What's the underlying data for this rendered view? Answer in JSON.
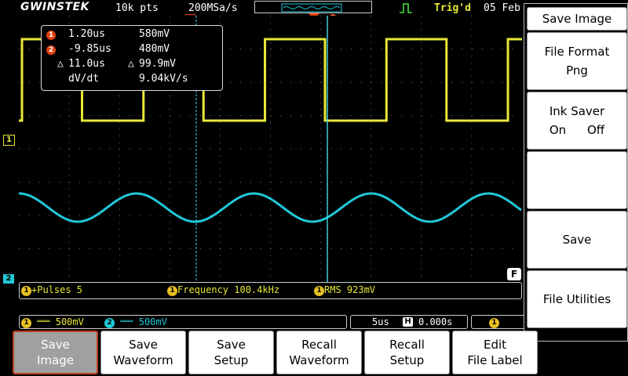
{
  "topbar": {
    "brand": "GWINSTEK",
    "record_length": "10k pts",
    "sample_rate": "200MSa/s",
    "trigger_status": "Trig'd",
    "date": "05 Feb"
  },
  "markers": {
    "ch1": "1",
    "ch2": "2",
    "cursor1": "1",
    "cursor2": "2",
    "flag": "F"
  },
  "cursor_readout": {
    "c1_time": "1.20us",
    "c1_volt": "580mV",
    "c2_time": "-9.85us",
    "c2_volt": "480mV",
    "delta_time": "11.0us",
    "delta_volt": "99.9mV",
    "dvdt_label": "dV/dt",
    "dvdt_value": "9.04kV/s",
    "delta_symbol": "△"
  },
  "measurements": [
    {
      "label": "+Pulses 5"
    },
    {
      "label": "Frequency 100.4kHz"
    },
    {
      "label": "RMS 923mV"
    }
  ],
  "status": {
    "ch1_scale": "500mV",
    "ch2_scale": "500mV",
    "timebase": "5us",
    "h_position": "0.000s",
    "coupling_symbol": "═══"
  },
  "right_menu": {
    "title": "Save Image",
    "file_format_label": "File Format",
    "file_format_value": "Png",
    "ink_saver_label": "Ink Saver",
    "ink_on": "On",
    "ink_off": "Off",
    "save_label": "Save",
    "file_utilities_label": "File Utilities"
  },
  "bottom_menu": [
    {
      "line1": "Save",
      "line2": "Image"
    },
    {
      "line1": "Save",
      "line2": "Waveform"
    },
    {
      "line1": "Save",
      "line2": "Setup"
    },
    {
      "line1": "Recall",
      "line2": "Waveform"
    },
    {
      "line1": "Recall",
      "line2": "Setup"
    },
    {
      "line1": "Edit",
      "line2": "File Label"
    }
  ],
  "colors": {
    "ch1": "#e8e838",
    "ch2": "#20c8d8",
    "cursor": "#40d8e8",
    "trigger": "#e04010"
  }
}
